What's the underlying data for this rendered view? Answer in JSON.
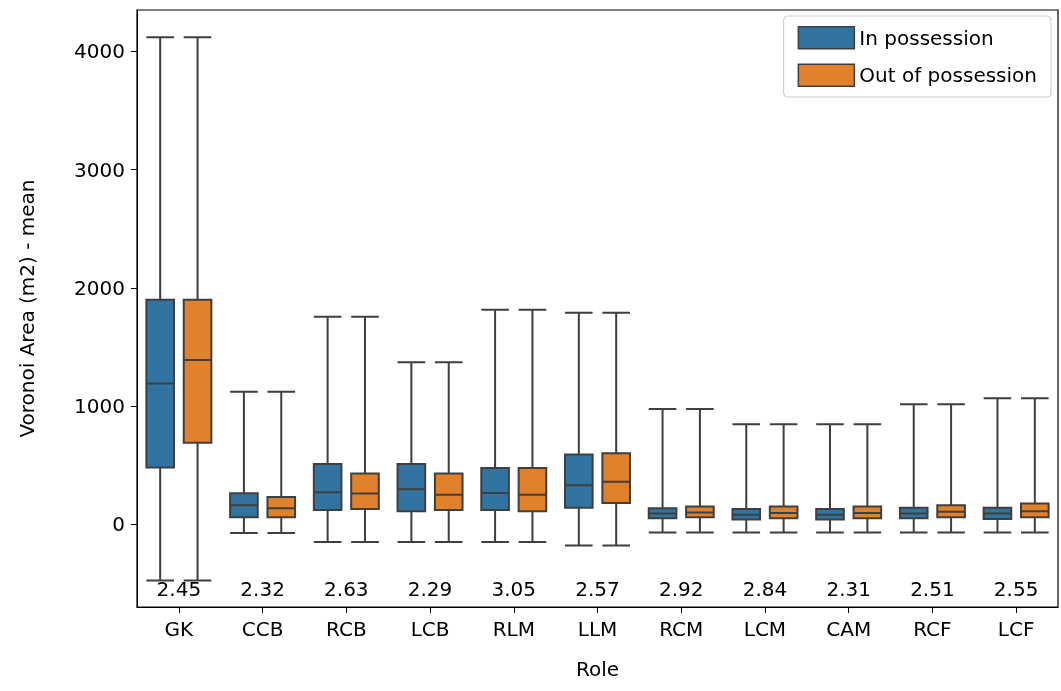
{
  "chart_data": {
    "type": "box",
    "xlabel": "Role",
    "ylabel": "Voronoi Area (m2) - mean",
    "categories": [
      "GK",
      "CCB",
      "RCB",
      "LCB",
      "RLM",
      "LLM",
      "RCM",
      "LCM",
      "CAM",
      "RCF",
      "LCF"
    ],
    "series": [
      {
        "name": "In possession",
        "color": "#3274a1",
        "boxes": [
          {
            "low": -475,
            "q1": 480,
            "median": 1190,
            "q3": 1900,
            "high": 4120
          },
          {
            "low": -75,
            "q1": 60,
            "median": 160,
            "q3": 263,
            "high": 1120
          },
          {
            "low": -150,
            "q1": 120,
            "median": 270,
            "q3": 510,
            "high": 1755
          },
          {
            "low": -150,
            "q1": 110,
            "median": 295,
            "q3": 510,
            "high": 1370
          },
          {
            "low": -150,
            "q1": 120,
            "median": 265,
            "q3": 475,
            "high": 1815
          },
          {
            "low": -180,
            "q1": 140,
            "median": 330,
            "q3": 590,
            "high": 1790
          },
          {
            "low": -70,
            "q1": 50,
            "median": 90,
            "q3": 135,
            "high": 975
          },
          {
            "low": -70,
            "q1": 40,
            "median": 80,
            "q3": 130,
            "high": 845
          },
          {
            "low": -70,
            "q1": 40,
            "median": 80,
            "q3": 130,
            "high": 845
          },
          {
            "low": -70,
            "q1": 50,
            "median": 90,
            "q3": 140,
            "high": 1015
          },
          {
            "low": -70,
            "q1": 45,
            "median": 90,
            "q3": 140,
            "high": 1065
          }
        ]
      },
      {
        "name": "Out of possession",
        "color": "#e1812c",
        "boxes": [
          {
            "low": -475,
            "q1": 690,
            "median": 1390,
            "q3": 1900,
            "high": 4120
          },
          {
            "low": -75,
            "q1": 60,
            "median": 135,
            "q3": 230,
            "high": 1120
          },
          {
            "low": -150,
            "q1": 130,
            "median": 260,
            "q3": 430,
            "high": 1755
          },
          {
            "low": -150,
            "q1": 120,
            "median": 250,
            "q3": 430,
            "high": 1370
          },
          {
            "low": -150,
            "q1": 110,
            "median": 250,
            "q3": 475,
            "high": 1815
          },
          {
            "low": -180,
            "q1": 180,
            "median": 360,
            "q3": 600,
            "high": 1790
          },
          {
            "low": -70,
            "q1": 60,
            "median": 100,
            "q3": 150,
            "high": 975
          },
          {
            "low": -70,
            "q1": 50,
            "median": 95,
            "q3": 150,
            "high": 845
          },
          {
            "low": -70,
            "q1": 50,
            "median": 95,
            "q3": 150,
            "high": 845
          },
          {
            "low": -70,
            "q1": 60,
            "median": 105,
            "q3": 160,
            "high": 1015
          },
          {
            "low": -70,
            "q1": 60,
            "median": 110,
            "q3": 175,
            "high": 1065
          }
        ]
      }
    ],
    "ylim": [
      -700,
      4350
    ],
    "yticks": [
      0,
      1000,
      2000,
      3000,
      4000
    ],
    "grid": false,
    "legend": "top right",
    "annotations": [
      "2.45",
      "2.32",
      "2.63",
      "2.29",
      "3.05",
      "2.57",
      "2.92",
      "2.84",
      "2.31",
      "2.51",
      "2.55"
    ]
  }
}
